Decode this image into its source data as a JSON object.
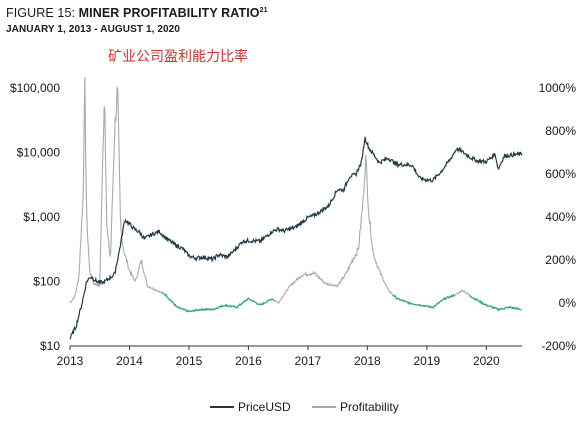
{
  "header": {
    "figure_label": "FIGURE 15: ",
    "title": "MINER PROFITABILITY RATIO",
    "title_superscript": "21",
    "subtitle": "JANUARY 1, 2013 - AUGUST 1, 2020",
    "annotation_cn": "矿业公司盈利能力比率"
  },
  "colors": {
    "price_line": "#1f3a44",
    "profit_line": "#a9a9a9",
    "profit_low": "#2eaa6a"
  },
  "chart_data": {
    "type": "line",
    "x_ticks": [
      "2013",
      "2014",
      "2015",
      "2016",
      "2017",
      "2018",
      "2019",
      "2020"
    ],
    "xlim": [
      2013.0,
      2020.6
    ],
    "left_axis": {
      "label": "",
      "scale": "log",
      "ticks": [
        10,
        100,
        1000,
        10000,
        100000
      ],
      "tick_labels": [
        "$10",
        "$100",
        "$1,000",
        "$10,000",
        "$100,000"
      ],
      "range": [
        10,
        100000
      ]
    },
    "right_axis": {
      "label": "",
      "scale": "linear",
      "ticks": [
        -200,
        0,
        200,
        400,
        600,
        800,
        1000
      ],
      "tick_labels": [
        "-200%",
        "0%",
        "200%",
        "400%",
        "600%",
        "800%",
        "1000%"
      ],
      "range": [
        -200,
        1000
      ]
    },
    "grid": false,
    "legend_position": "bottom-center",
    "series": [
      {
        "name": "PriceUSD",
        "axis": "left",
        "x": [
          2013.0,
          2013.1,
          2013.2,
          2013.28,
          2013.35,
          2013.45,
          2013.55,
          2013.65,
          2013.75,
          2013.83,
          2013.92,
          2014.0,
          2014.08,
          2014.17,
          2014.25,
          2014.35,
          2014.5,
          2014.6,
          2014.75,
          2014.9,
          2015.0,
          2015.1,
          2015.25,
          2015.4,
          2015.5,
          2015.65,
          2015.8,
          2015.9,
          2016.0,
          2016.2,
          2016.4,
          2016.5,
          2016.6,
          2016.8,
          2017.0,
          2017.1,
          2017.2,
          2017.35,
          2017.5,
          2017.6,
          2017.7,
          2017.8,
          2017.9,
          2017.96,
          2018.03,
          2018.1,
          2018.2,
          2018.35,
          2018.5,
          2018.6,
          2018.75,
          2018.88,
          2018.97,
          2019.1,
          2019.25,
          2019.4,
          2019.5,
          2019.6,
          2019.75,
          2019.85,
          2020.0,
          2020.15,
          2020.2,
          2020.3,
          2020.45,
          2020.58
        ],
        "values": [
          13,
          20,
          45,
          100,
          120,
          100,
          95,
          110,
          130,
          300,
          900,
          780,
          650,
          580,
          460,
          520,
          600,
          480,
          380,
          320,
          250,
          230,
          240,
          220,
          260,
          240,
          330,
          420,
          430,
          420,
          600,
          650,
          610,
          700,
          980,
          1050,
          1200,
          1500,
          2700,
          2600,
          4300,
          4500,
          7000,
          17000,
          11500,
          9500,
          7000,
          8200,
          6500,
          6500,
          6400,
          4000,
          3800,
          3700,
          5200,
          8000,
          11500,
          10200,
          8200,
          7400,
          7200,
          9500,
          5500,
          8800,
          9200,
          9400
        ]
      },
      {
        "name": "Profitability",
        "axis": "right",
        "x": [
          2013.0,
          2013.08,
          2013.15,
          2013.22,
          2013.25,
          2013.28,
          2013.33,
          2013.4,
          2013.5,
          2013.58,
          2013.62,
          2013.68,
          2013.75,
          2013.8,
          2013.85,
          2013.9,
          2014.0,
          2014.1,
          2014.2,
          2014.3,
          2014.45,
          2014.6,
          2014.8,
          2015.0,
          2015.2,
          2015.4,
          2015.6,
          2015.8,
          2016.0,
          2016.2,
          2016.4,
          2016.5,
          2016.7,
          2016.9,
          2017.1,
          2017.3,
          2017.5,
          2017.65,
          2017.75,
          2017.85,
          2017.93,
          2017.97,
          2018.03,
          2018.1,
          2018.2,
          2018.35,
          2018.5,
          2018.7,
          2018.9,
          2019.1,
          2019.3,
          2019.5,
          2019.6,
          2019.8,
          2020.0,
          2020.2,
          2020.4,
          2020.58
        ],
        "values": [
          0,
          30,
          120,
          500,
          1000,
          400,
          150,
          90,
          80,
          1000,
          350,
          200,
          800,
          1000,
          350,
          250,
          150,
          100,
          200,
          80,
          60,
          40,
          -20,
          -40,
          -30,
          -30,
          -10,
          -20,
          20,
          -10,
          20,
          0,
          80,
          130,
          140,
          90,
          80,
          140,
          200,
          250,
          480,
          680,
          400,
          230,
          150,
          60,
          20,
          0,
          -10,
          -20,
          20,
          40,
          60,
          20,
          -10,
          -30,
          -20,
          -30
        ]
      }
    ]
  }
}
